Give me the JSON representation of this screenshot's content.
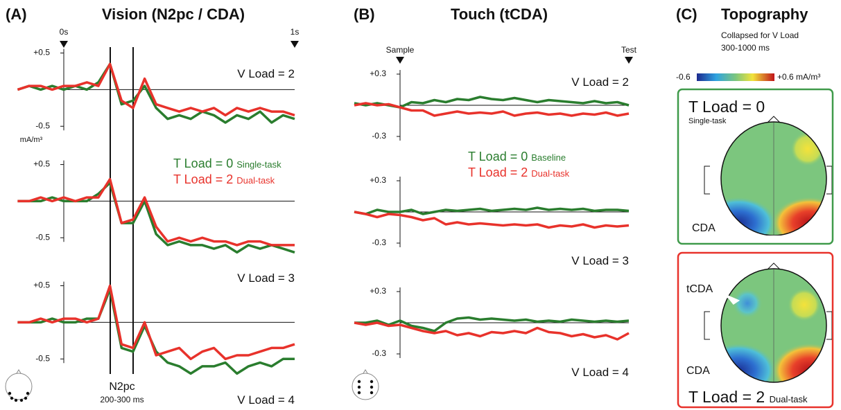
{
  "panel_a": {
    "label": "(A)",
    "title": "Vision (N2pc / CDA)",
    "marker_start": "0s",
    "marker_end": "1s",
    "unit": "mA/m³",
    "window_name": "N2pc",
    "window_range": "200-300 ms",
    "legend": [
      {
        "name": "T Load = 0",
        "note": "Single-task",
        "color": "#2a7d2e"
      },
      {
        "name": "T Load = 2",
        "note": "Dual-task",
        "color": "#e8322b"
      }
    ]
  },
  "panel_b": {
    "label": "(B)",
    "title": "Touch (tCDA)",
    "marker_start": "Sample",
    "marker_end": "Test",
    "legend": [
      {
        "name": "T Load = 0",
        "note": "Baseline",
        "color": "#2a7d2e"
      },
      {
        "name": "T Load = 2",
        "note": "Dual-task",
        "color": "#e8322b"
      }
    ]
  },
  "panel_c": {
    "label": "(C)",
    "title": "Topography",
    "subtitle_1": "Collapsed for V Load",
    "subtitle_2": "300-1000 ms",
    "scale_min": "-0.6",
    "scale_max": "+0.6 mA/m³",
    "maps": [
      {
        "title": "T Load = 0",
        "note": "Single-task",
        "labels": [
          "CDA"
        ]
      },
      {
        "title": "T Load = 2",
        "note": "Dual-task",
        "labels": [
          "tCDA",
          "CDA"
        ]
      }
    ]
  },
  "chart_data": [
    {
      "type": "line",
      "annotation": "V Load = 2",
      "x": [
        -0.2,
        -0.15,
        -0.1,
        -0.05,
        0,
        0.05,
        0.1,
        0.15,
        0.2,
        0.25,
        0.3,
        0.35,
        0.4,
        0.45,
        0.5,
        0.55,
        0.6,
        0.65,
        0.7,
        0.75,
        0.8,
        0.85,
        0.9,
        0.95,
        1.0
      ],
      "ylim": [
        -0.8,
        0.6
      ],
      "yticks": [
        {
          "value": 0.5,
          "label": "+0.5"
        },
        -0.5
      ],
      "series": [
        {
          "color": "#2a7d2e",
          "values": [
            0,
            0.05,
            0,
            0.05,
            0,
            0.05,
            0,
            0.1,
            0.35,
            -0.2,
            -0.15,
            0.05,
            -0.25,
            -0.4,
            -0.35,
            -0.4,
            -0.3,
            -0.35,
            -0.45,
            -0.35,
            -0.4,
            -0.3,
            -0.45,
            -0.35,
            -0.4
          ]
        },
        {
          "color": "#e8322b",
          "values": [
            0,
            0.05,
            0.05,
            0,
            0.05,
            0.05,
            0.1,
            0.05,
            0.35,
            -0.15,
            -0.25,
            0.15,
            -0.2,
            -0.25,
            -0.3,
            -0.25,
            -0.3,
            -0.25,
            -0.35,
            -0.25,
            -0.3,
            -0.25,
            -0.3,
            -0.3,
            -0.35
          ]
        }
      ]
    },
    {
      "type": "line",
      "annotation": "V Load = 3",
      "x": [
        -0.2,
        -0.15,
        -0.1,
        -0.05,
        0,
        0.05,
        0.1,
        0.15,
        0.2,
        0.25,
        0.3,
        0.35,
        0.4,
        0.45,
        0.5,
        0.55,
        0.6,
        0.65,
        0.7,
        0.75,
        0.8,
        0.85,
        0.9,
        0.95,
        1.0
      ],
      "ylim": [
        -0.8,
        0.6
      ],
      "yticks": [
        {
          "value": 0.5,
          "label": "+0.5"
        },
        -0.5
      ],
      "series": [
        {
          "color": "#2a7d2e",
          "values": [
            0,
            0,
            0,
            0.05,
            0,
            0,
            0,
            0.1,
            0.25,
            -0.3,
            -0.3,
            0,
            -0.45,
            -0.6,
            -0.55,
            -0.6,
            -0.6,
            -0.65,
            -0.6,
            -0.7,
            -0.6,
            -0.65,
            -0.6,
            -0.65,
            -0.7
          ]
        },
        {
          "color": "#e8322b",
          "values": [
            0,
            0,
            0.05,
            0,
            0.05,
            0,
            0.05,
            0.05,
            0.3,
            -0.3,
            -0.25,
            0.05,
            -0.35,
            -0.55,
            -0.5,
            -0.55,
            -0.5,
            -0.55,
            -0.55,
            -0.6,
            -0.55,
            -0.55,
            -0.6,
            -0.6,
            -0.6
          ]
        }
      ]
    },
    {
      "type": "line",
      "annotation": "V Load = 4",
      "x": [
        -0.2,
        -0.15,
        -0.1,
        -0.05,
        0,
        0.05,
        0.1,
        0.15,
        0.2,
        0.25,
        0.3,
        0.35,
        0.4,
        0.45,
        0.5,
        0.55,
        0.6,
        0.65,
        0.7,
        0.75,
        0.8,
        0.85,
        0.9,
        0.95,
        1.0
      ],
      "ylim": [
        -0.8,
        0.6
      ],
      "yticks": [
        {
          "value": 0.5,
          "label": "+0.5"
        },
        -0.5
      ],
      "series": [
        {
          "color": "#2a7d2e",
          "values": [
            0,
            0,
            0,
            0.05,
            0,
            0,
            0.05,
            0.05,
            0.45,
            -0.35,
            -0.4,
            -0.05,
            -0.4,
            -0.55,
            -0.6,
            -0.7,
            -0.6,
            -0.6,
            -0.55,
            -0.7,
            -0.6,
            -0.55,
            -0.6,
            -0.5,
            -0.5
          ]
        },
        {
          "color": "#e8322b",
          "values": [
            0,
            0,
            0.05,
            0,
            0.05,
            0.05,
            0,
            0.05,
            0.5,
            -0.3,
            -0.35,
            0,
            -0.45,
            -0.4,
            -0.35,
            -0.5,
            -0.4,
            -0.35,
            -0.5,
            -0.45,
            -0.45,
            -0.4,
            -0.35,
            -0.35,
            -0.3
          ]
        }
      ]
    },
    {
      "type": "line",
      "annotation": "V Load = 2",
      "x": [
        -0.2,
        -0.15,
        -0.1,
        -0.05,
        0,
        0.05,
        0.1,
        0.15,
        0.2,
        0.25,
        0.3,
        0.35,
        0.4,
        0.45,
        0.5,
        0.55,
        0.6,
        0.65,
        0.7,
        0.75,
        0.8,
        0.85,
        0.9,
        0.95,
        1.0
      ],
      "ylim": [
        -0.35,
        0.35
      ],
      "yticks": [
        {
          "value": 0.3,
          "label": "+0.3"
        },
        -0.3
      ],
      "series": [
        {
          "color": "#2a7d2e",
          "values": [
            0.02,
            0,
            0.02,
            0,
            -0.02,
            0.03,
            0.02,
            0.05,
            0.03,
            0.06,
            0.05,
            0.08,
            0.06,
            0.05,
            0.07,
            0.05,
            0.03,
            0.05,
            0.04,
            0.03,
            0.02,
            0.04,
            0.02,
            0.03,
            0
          ]
        },
        {
          "color": "#e8322b",
          "values": [
            0,
            0.02,
            0,
            0.01,
            -0.02,
            -0.05,
            -0.05,
            -0.1,
            -0.08,
            -0.06,
            -0.08,
            -0.07,
            -0.08,
            -0.06,
            -0.1,
            -0.08,
            -0.07,
            -0.09,
            -0.08,
            -0.1,
            -0.08,
            -0.09,
            -0.07,
            -0.1,
            -0.08
          ]
        }
      ]
    },
    {
      "type": "line",
      "annotation": "V Load = 3",
      "x": [
        -0.2,
        -0.15,
        -0.1,
        -0.05,
        0,
        0.05,
        0.1,
        0.15,
        0.2,
        0.25,
        0.3,
        0.35,
        0.4,
        0.45,
        0.5,
        0.55,
        0.6,
        0.65,
        0.7,
        0.75,
        0.8,
        0.85,
        0.9,
        0.95,
        1.0
      ],
      "ylim": [
        -0.35,
        0.35
      ],
      "yticks": [
        {
          "value": 0.3,
          "label": "+0.3"
        },
        -0.3
      ],
      "series": [
        {
          "color": "#2a7d2e",
          "values": [
            0,
            -0.02,
            0.02,
            0,
            0,
            0.02,
            -0.02,
            0,
            0.02,
            0.01,
            0.02,
            0.03,
            0.01,
            0.02,
            0.03,
            0.02,
            0.04,
            0.02,
            0.03,
            0.02,
            0.03,
            0.01,
            0.02,
            0.02,
            0.01
          ]
        },
        {
          "color": "#e8322b",
          "values": [
            0,
            -0.02,
            -0.05,
            -0.02,
            -0.03,
            -0.05,
            -0.08,
            -0.06,
            -0.12,
            -0.1,
            -0.12,
            -0.11,
            -0.12,
            -0.13,
            -0.12,
            -0.13,
            -0.12,
            -0.15,
            -0.13,
            -0.14,
            -0.12,
            -0.15,
            -0.13,
            -0.14,
            -0.13
          ]
        }
      ]
    },
    {
      "type": "line",
      "annotation": "V Load = 4",
      "x": [
        -0.2,
        -0.15,
        -0.1,
        -0.05,
        0,
        0.05,
        0.1,
        0.15,
        0.2,
        0.25,
        0.3,
        0.35,
        0.4,
        0.45,
        0.5,
        0.55,
        0.6,
        0.65,
        0.7,
        0.75,
        0.8,
        0.85,
        0.9,
        0.95,
        1.0
      ],
      "ylim": [
        -0.35,
        0.35
      ],
      "yticks": [
        {
          "value": 0.3,
          "label": "+0.3"
        },
        -0.3
      ],
      "series": [
        {
          "color": "#2a7d2e",
          "values": [
            0,
            0,
            0.02,
            -0.02,
            0.02,
            -0.03,
            -0.05,
            -0.08,
            0,
            0.04,
            0.05,
            0.03,
            0.04,
            0.03,
            0.02,
            0.03,
            0.01,
            0.02,
            0.01,
            0.03,
            0.02,
            0.01,
            0.02,
            0.01,
            0.02
          ]
        },
        {
          "color": "#e8322b",
          "values": [
            0,
            -0.02,
            0,
            -0.03,
            -0.02,
            -0.05,
            -0.08,
            -0.1,
            -0.08,
            -0.12,
            -0.1,
            -0.13,
            -0.09,
            -0.1,
            -0.08,
            -0.1,
            -0.05,
            -0.09,
            -0.1,
            -0.13,
            -0.11,
            -0.14,
            -0.12,
            -0.16,
            -0.1
          ]
        }
      ]
    }
  ]
}
